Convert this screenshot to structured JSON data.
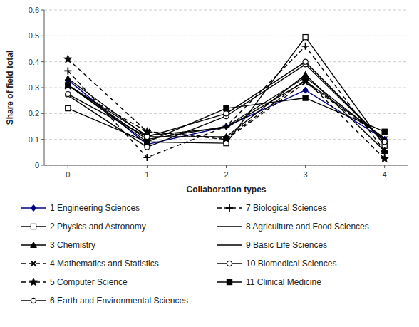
{
  "chart_data": {
    "type": "line",
    "xlabel": "Collaboration types",
    "ylabel": "Share of field total",
    "x": [
      0,
      1,
      2,
      3,
      4
    ],
    "xlim": [
      -0.3,
      4.3
    ],
    "xticks": [
      0,
      1,
      2,
      3,
      4
    ],
    "ylim": [
      0,
      0.6
    ],
    "yticks": [
      0,
      0.1,
      0.2,
      0.3,
      0.4,
      0.5,
      0.6
    ],
    "grid": true,
    "legend": "bottom",
    "series": [
      {
        "name": "1 Engineering Sciences",
        "color": "#000080",
        "marker": "diamond",
        "line_style": "solid",
        "values": [
          0.33,
          0.08,
          0.15,
          0.29,
          0.1
        ]
      },
      {
        "name": "2 Physics and Astronomy",
        "color": "#000000",
        "marker": "square-open",
        "line_style": "solid",
        "values": [
          0.22,
          0.09,
          0.085,
          0.495,
          0.075
        ]
      },
      {
        "name": "3 Chemistry",
        "color": "#000000",
        "marker": "triangle",
        "line_style": "solid",
        "values": [
          0.335,
          0.11,
          0.11,
          0.35,
          0.055
        ]
      },
      {
        "name": "4 Mathematics and Statistics",
        "color": "#000000",
        "marker": "x",
        "line_style": "dashed",
        "values": [
          0.305,
          0.13,
          0.1,
          0.32,
          0.1
        ]
      },
      {
        "name": "5 Computer Science",
        "color": "#000000",
        "marker": "star",
        "line_style": "dashed",
        "values": [
          0.41,
          0.13,
          0.105,
          0.33,
          0.025
        ]
      },
      {
        "name": "6 Earth and Environmental Sciences",
        "color": "#000000",
        "marker": "circle-open",
        "line_style": "solid",
        "values": [
          0.27,
          0.07,
          0.19,
          0.39,
          0.09
        ]
      },
      {
        "name": "7 Biological Sciences",
        "color": "#000000",
        "marker": "plus",
        "line_style": "dashed",
        "values": [
          0.365,
          0.03,
          0.15,
          0.46,
          0.055
        ]
      },
      {
        "name": "8 Agriculture and Food Sciences",
        "color": "#000000",
        "marker": "none",
        "line_style": "solid",
        "values": [
          0.31,
          0.1,
          0.15,
          0.34,
          0.1
        ]
      },
      {
        "name": "9 Basic Life Sciences",
        "color": "#000000",
        "marker": "none",
        "line_style": "solid",
        "values": [
          0.31,
          0.115,
          0.145,
          0.325,
          0.105
        ]
      },
      {
        "name": "10 Biomedical Sciences",
        "color": "#000000",
        "marker": "circle-open",
        "line_style": "solid",
        "values": [
          0.275,
          0.11,
          0.2,
          0.4,
          0.09
        ]
      },
      {
        "name": "11 Clinical Medicine",
        "color": "#000000",
        "marker": "square",
        "line_style": "solid",
        "values": [
          0.31,
          0.09,
          0.22,
          0.26,
          0.13
        ]
      }
    ]
  }
}
